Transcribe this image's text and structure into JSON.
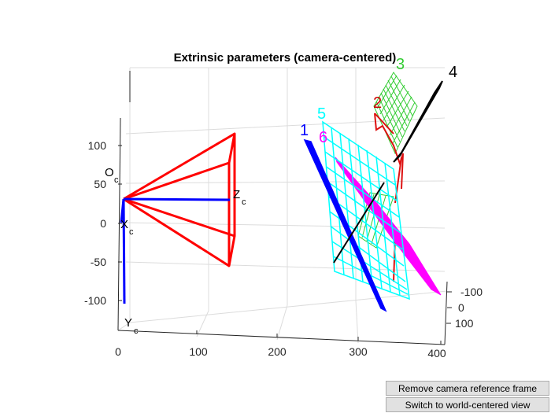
{
  "figure": {
    "title": "Extrinsic parameters (camera-centered)",
    "x_ticks": [
      "0",
      "100",
      "200",
      "300",
      "400"
    ],
    "y_ticks": [
      "100",
      "50",
      "0",
      "-50",
      "-100"
    ],
    "z_ticks": [
      "-100",
      "0",
      "100"
    ],
    "camera_labels": {
      "origin": "O",
      "origin_sub": "c",
      "x": "X",
      "x_sub": "c",
      "y": "Y",
      "y_sub": "c",
      "z": "Z",
      "z_sub": "c"
    },
    "board_labels": [
      "1",
      "2",
      "3",
      "4",
      "5",
      "6"
    ],
    "board_colors": [
      "#0000ff",
      "#cc0000",
      "#33cc33",
      "#000000",
      "#00ffff",
      "#ff00ff"
    ],
    "frustum_color": "#ff0000",
    "axis_color": "#0000ff"
  },
  "buttons": {
    "remove_camera": "Remove camera reference frame",
    "switch_view": "Switch to world-centered view"
  }
}
